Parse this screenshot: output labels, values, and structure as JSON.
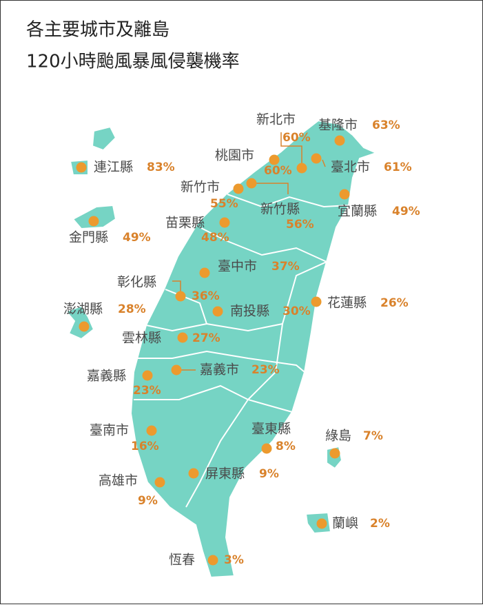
{
  "header": {
    "title_line1": "各主要城市及離島",
    "title_line2": "120小時颱風暴風侵襲機率"
  },
  "regions": [
    {
      "name": "基隆市",
      "probability": "63%"
    },
    {
      "name": "新北市",
      "probability": "60%"
    },
    {
      "name": "臺北市",
      "probability": "61%"
    },
    {
      "name": "桃園市",
      "probability": "60%"
    },
    {
      "name": "新竹市",
      "probability": "55%"
    },
    {
      "name": "新竹縣",
      "probability": "56%"
    },
    {
      "name": "宜蘭縣",
      "probability": "49%"
    },
    {
      "name": "苗栗縣",
      "probability": "48%"
    },
    {
      "name": "臺中市",
      "probability": "37%"
    },
    {
      "name": "彰化縣",
      "probability": "36%"
    },
    {
      "name": "南投縣",
      "probability": "30%"
    },
    {
      "name": "花蓮縣",
      "probability": "26%"
    },
    {
      "name": "雲林縣",
      "probability": "27%"
    },
    {
      "name": "嘉義市",
      "probability": "23%"
    },
    {
      "name": "嘉義縣",
      "probability": "23%"
    },
    {
      "name": "臺南市",
      "probability": "16%"
    },
    {
      "name": "臺東縣",
      "probability": "8%"
    },
    {
      "name": "綠島",
      "probability": "7%"
    },
    {
      "name": "屏東縣",
      "probability": "9%"
    },
    {
      "name": "高雄市",
      "probability": "9%"
    },
    {
      "name": "蘭嶼",
      "probability": "2%"
    },
    {
      "name": "恆春",
      "probability": "3%"
    },
    {
      "name": "連江縣",
      "probability": "83%"
    },
    {
      "name": "金門縣",
      "probability": "49%"
    },
    {
      "name": "澎湖縣",
      "probability": "28%"
    }
  ]
}
